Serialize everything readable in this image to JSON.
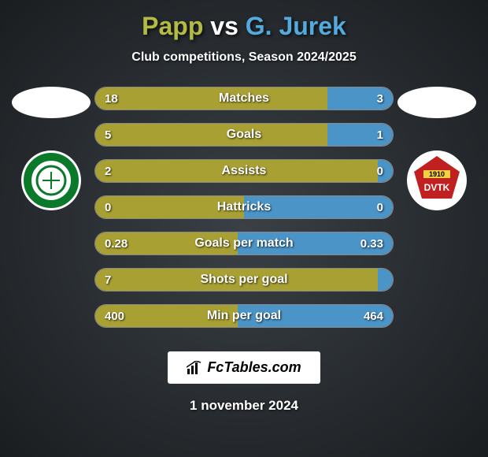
{
  "title": {
    "player1": "Papp",
    "vs": "vs",
    "player2": "G. Jurek"
  },
  "subtitle": "Club competitions, Season 2024/2025",
  "colors": {
    "player1_bar": "#a8a032",
    "player2_bar": "#4a94c8",
    "bar_bg": "#606060",
    "bar_border": "#888888",
    "title_p1": "#b3bb45",
    "title_p2": "#55aadd"
  },
  "clubs": {
    "left": {
      "name": "club-1",
      "bg": "#ffffff",
      "ring": "#0a7a2a"
    },
    "right": {
      "name": "DVTK",
      "bg": "#ffffff",
      "ring": "#c02020",
      "year": "1910"
    }
  },
  "stats": [
    {
      "label": "Matches",
      "left_val": "18",
      "right_val": "3",
      "left_pct": 78,
      "right_pct": 22
    },
    {
      "label": "Goals",
      "left_val": "5",
      "right_val": "1",
      "left_pct": 78,
      "right_pct": 22
    },
    {
      "label": "Assists",
      "left_val": "2",
      "right_val": "0",
      "left_pct": 95,
      "right_pct": 5
    },
    {
      "label": "Hattricks",
      "left_val": "0",
      "right_val": "0",
      "left_pct": 50,
      "right_pct": 50
    },
    {
      "label": "Goals per match",
      "left_val": "0.28",
      "right_val": "0.33",
      "left_pct": 48,
      "right_pct": 52
    },
    {
      "label": "Shots per goal",
      "left_val": "7",
      "right_val": "",
      "left_pct": 95,
      "right_pct": 5
    },
    {
      "label": "Min per goal",
      "left_val": "400",
      "right_val": "464",
      "left_pct": 48,
      "right_pct": 52
    }
  ],
  "footer": {
    "site": "FcTables.com",
    "date": "1 november 2024"
  },
  "fontsize": {
    "title": 32,
    "subtitle": 16,
    "stat_label": 16,
    "stat_value": 15,
    "footer": 18,
    "date": 17
  }
}
